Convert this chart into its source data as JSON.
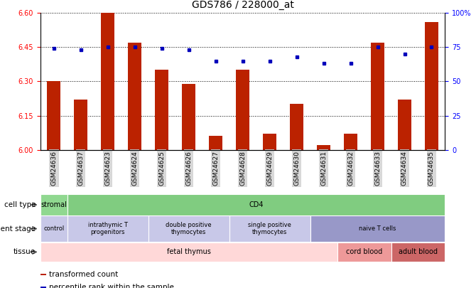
{
  "title": "GDS786 / 228000_at",
  "samples": [
    "GSM24636",
    "GSM24637",
    "GSM24623",
    "GSM24624",
    "GSM24625",
    "GSM24626",
    "GSM24627",
    "GSM24628",
    "GSM24629",
    "GSM24630",
    "GSM24631",
    "GSM24632",
    "GSM24633",
    "GSM24634",
    "GSM24635"
  ],
  "bar_values": [
    6.3,
    6.22,
    6.6,
    6.47,
    6.35,
    6.29,
    6.06,
    6.35,
    6.07,
    6.2,
    6.02,
    6.07,
    6.47,
    6.22,
    6.56
  ],
  "dot_values": [
    74,
    73,
    75,
    75,
    74,
    73,
    65,
    65,
    65,
    68,
    63,
    63,
    75,
    70,
    75
  ],
  "ylim_left": [
    6.0,
    6.6
  ],
  "ylim_right": [
    0,
    100
  ],
  "yticks_left": [
    6.0,
    6.15,
    6.3,
    6.45,
    6.6
  ],
  "yticks_right": [
    0,
    25,
    50,
    75,
    100
  ],
  "bar_color": "#bb2200",
  "dot_color": "#0000bb",
  "bg_color": "#ffffff",
  "cell_type_items": [
    {
      "label": "stromal",
      "start": 0,
      "end": 1,
      "color": "#90d890"
    },
    {
      "label": "CD4",
      "start": 1,
      "end": 15,
      "color": "#80cc80"
    }
  ],
  "dev_stage_items": [
    {
      "label": "control",
      "start": 0,
      "end": 1,
      "color": "#c8c8e8"
    },
    {
      "label": "intrathymic T\nprogenitors",
      "start": 1,
      "end": 4,
      "color": "#c8c8e8"
    },
    {
      "label": "double positive\nthymocytes",
      "start": 4,
      "end": 7,
      "color": "#c8c8e8"
    },
    {
      "label": "single positive\nthymocytes",
      "start": 7,
      "end": 10,
      "color": "#c8c8e8"
    },
    {
      "label": "naive T cells",
      "start": 10,
      "end": 15,
      "color": "#9898c8"
    }
  ],
  "tissue_items": [
    {
      "label": "fetal thymus",
      "start": 0,
      "end": 11,
      "color": "#ffd8d8"
    },
    {
      "label": "cord blood",
      "start": 11,
      "end": 13,
      "color": "#ee9999"
    },
    {
      "label": "adult blood",
      "start": 13,
      "end": 15,
      "color": "#cc6666"
    }
  ],
  "row_labels": [
    "cell type",
    "development stage",
    "tissue"
  ],
  "legend_items": [
    {
      "color": "#bb2200",
      "marker": "s",
      "label": "transformed count"
    },
    {
      "color": "#0000bb",
      "marker": "s",
      "label": "percentile rank within the sample"
    }
  ]
}
